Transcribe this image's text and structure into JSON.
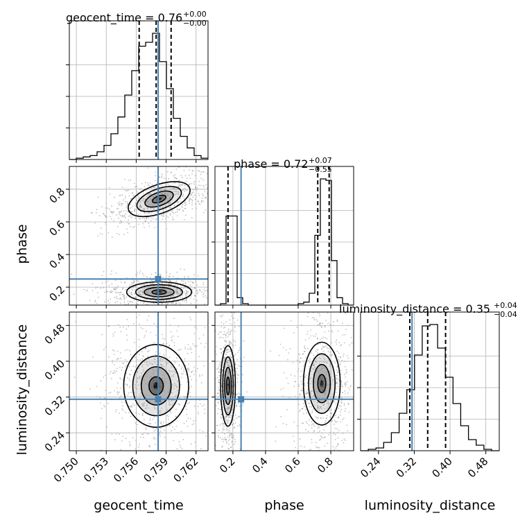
{
  "chart_data": {
    "type": "corner",
    "parameters": [
      "geocent_time",
      "phase",
      "luminosity_distance"
    ],
    "truths": {
      "geocent_time": 0.7582,
      "phase": 0.25,
      "luminosity_distance": 0.315
    },
    "titles": [
      {
        "param": "geocent_time",
        "prefix": "geocent_time = ",
        "median": "0.76",
        "plus": "+0.00",
        "minus": "−0.00"
      },
      {
        "param": "phase",
        "prefix": "phase = ",
        "median": "0.72",
        "plus": "+0.07",
        "minus": "−0.55"
      },
      {
        "param": "luminosity_distance",
        "prefix": "luminosity_distance = ",
        "median": "0.35",
        "plus": "+0.04",
        "minus": "−0.04"
      }
    ],
    "xlabels": [
      "geocent_time",
      "phase",
      "luminosity_distance"
    ],
    "ylabels": [
      "",
      "phase",
      "luminosity_distance"
    ],
    "ranges": {
      "geocent_time": [
        0.7493,
        0.7632
      ],
      "phase": [
        0.09,
        0.94
      ],
      "luminosity_distance": [
        0.2,
        0.51
      ]
    },
    "ticks": {
      "geocent_time": {
        "values": [
          0.75,
          0.753,
          0.756,
          0.759,
          0.762
        ],
        "labels": [
          "0.750",
          "0.753",
          "0.756",
          "0.759",
          "0.762"
        ]
      },
      "phase": {
        "values": [
          0.2,
          0.4,
          0.6,
          0.8
        ],
        "labels": [
          "0.2",
          "0.4",
          "0.6",
          "0.8"
        ]
      },
      "luminosity_distance": {
        "values": [
          0.24,
          0.32,
          0.4,
          0.48
        ],
        "labels": [
          "0.24",
          "0.32",
          "0.40",
          "0.48"
        ]
      }
    },
    "quantiles": {
      "geocent_time": [
        0.7563,
        0.758,
        0.7595
      ],
      "phase": [
        0.17,
        0.72,
        0.79
      ],
      "luminosity_distance": [
        0.31,
        0.35,
        0.39
      ]
    },
    "histograms": {
      "geocent_time": {
        "start": 0.7493,
        "end": 0.7632,
        "counts": [
          0,
          1,
          2,
          3,
          6,
          11,
          20,
          33,
          50,
          69,
          88,
          91,
          98,
          76,
          55,
          32,
          18,
          9,
          3,
          1
        ]
      },
      "phase": {
        "start": 0.09,
        "end": 0.94,
        "counts": [
          0,
          1,
          60,
          60,
          5,
          1,
          0,
          0,
          0,
          0,
          0,
          0,
          0,
          0,
          0,
          1,
          2,
          8,
          47,
          85,
          84,
          30,
          5,
          1,
          0
        ]
      },
      "luminosity_distance": {
        "start": 0.2,
        "end": 0.51,
        "counts": [
          0,
          1,
          2,
          6,
          13,
          27,
          44,
          69,
          90,
          91,
          74,
          53,
          34,
          18,
          8,
          4,
          1,
          0
        ]
      }
    },
    "contours_2d": [
      {
        "x": "geocent_time",
        "y": "phase",
        "clusters": [
          {
            "cx": 0.7583,
            "cy": 0.74,
            "sx": 0.0013,
            "sy": 0.035,
            "rot": -0.35
          },
          {
            "cx": 0.7583,
            "cy": 0.17,
            "sx": 0.0013,
            "sy": 0.025,
            "rot": 0.0
          }
        ]
      },
      {
        "x": "geocent_time",
        "y": "luminosity_distance",
        "clusters": [
          {
            "cx": 0.758,
            "cy": 0.345,
            "sx": 0.0013,
            "sy": 0.037,
            "rot": 0.0
          }
        ]
      },
      {
        "x": "phase",
        "y": "luminosity_distance",
        "clusters": [
          {
            "cx": 0.17,
            "cy": 0.345,
            "sx": 0.018,
            "sy": 0.036,
            "rot": 0.0
          },
          {
            "cx": 0.745,
            "cy": 0.35,
            "sx": 0.045,
            "sy": 0.037,
            "rot": 0.0
          }
        ]
      }
    ],
    "colors": {
      "truth": "#4682b4",
      "hist": "#000000",
      "scatter": "#8c8c8c",
      "grid": "#b0b0b0"
    }
  }
}
